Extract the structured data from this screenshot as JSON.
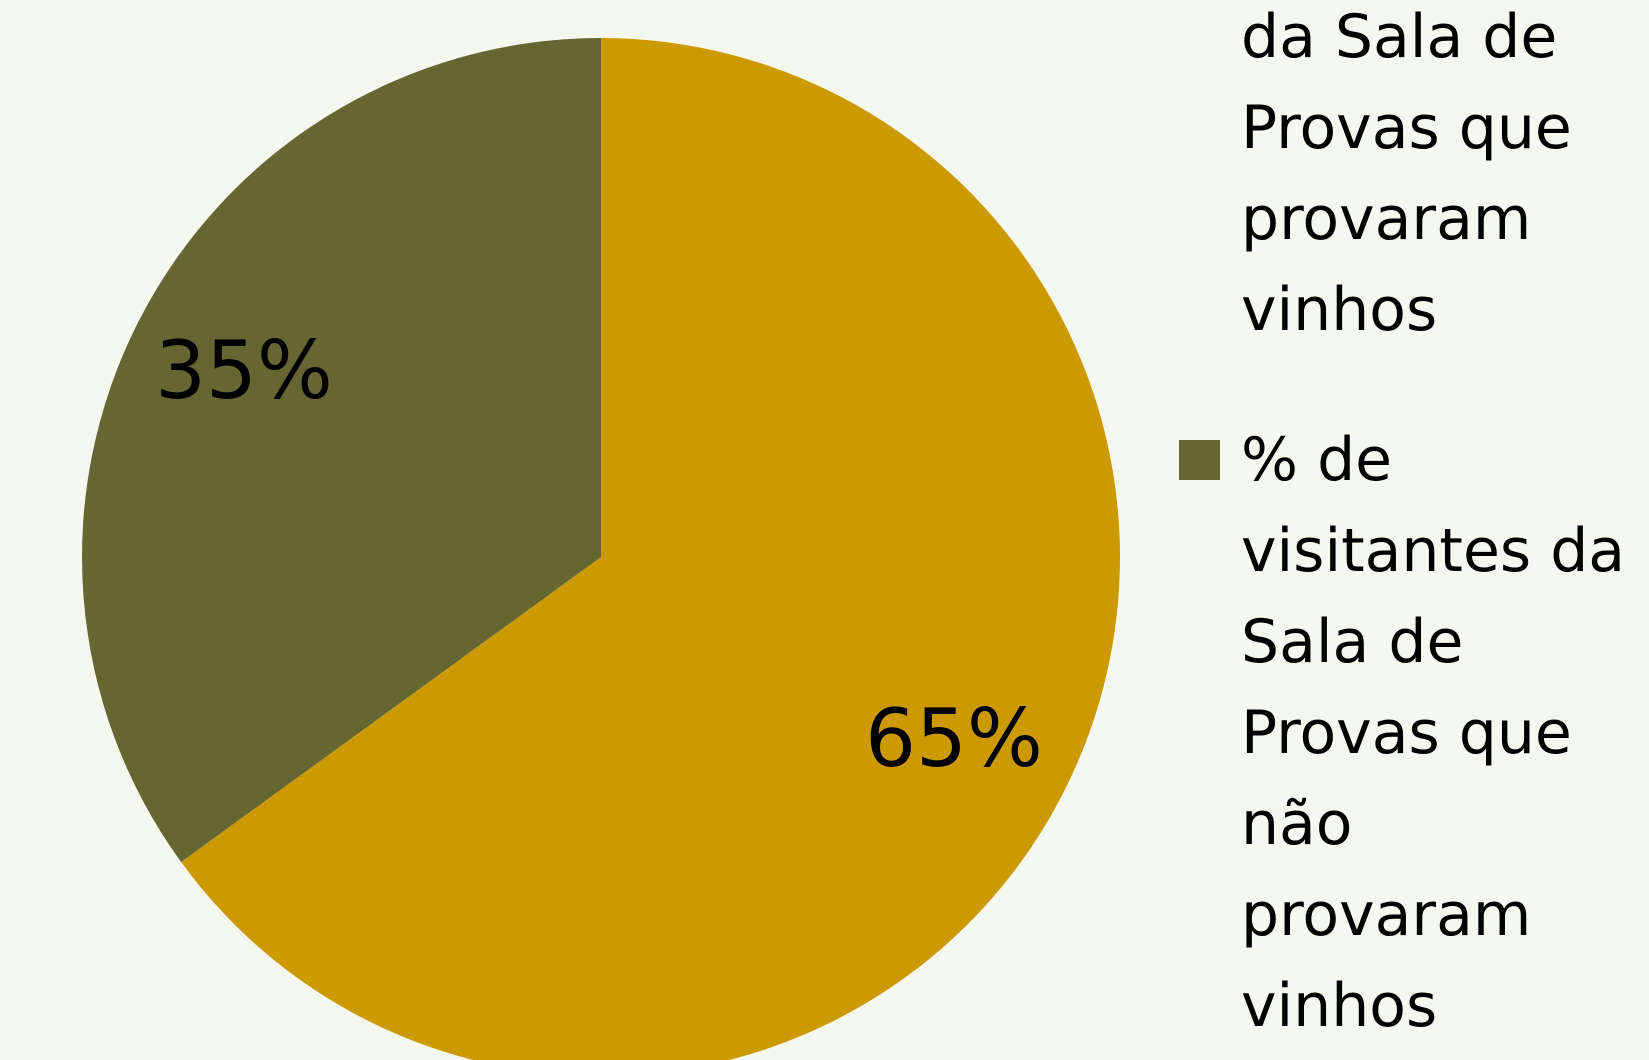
{
  "chart_data": {
    "type": "pie",
    "series": [
      {
        "name": "da Sala de Provas que provaram vinhos",
        "color": "#cc9900",
        "value": 65,
        "value_label": "65%"
      },
      {
        "name": "% de visitantes da Sala de Provas que não provaram vinhos",
        "color": "#666633",
        "value": 35,
        "value_label": "35%"
      }
    ]
  }
}
